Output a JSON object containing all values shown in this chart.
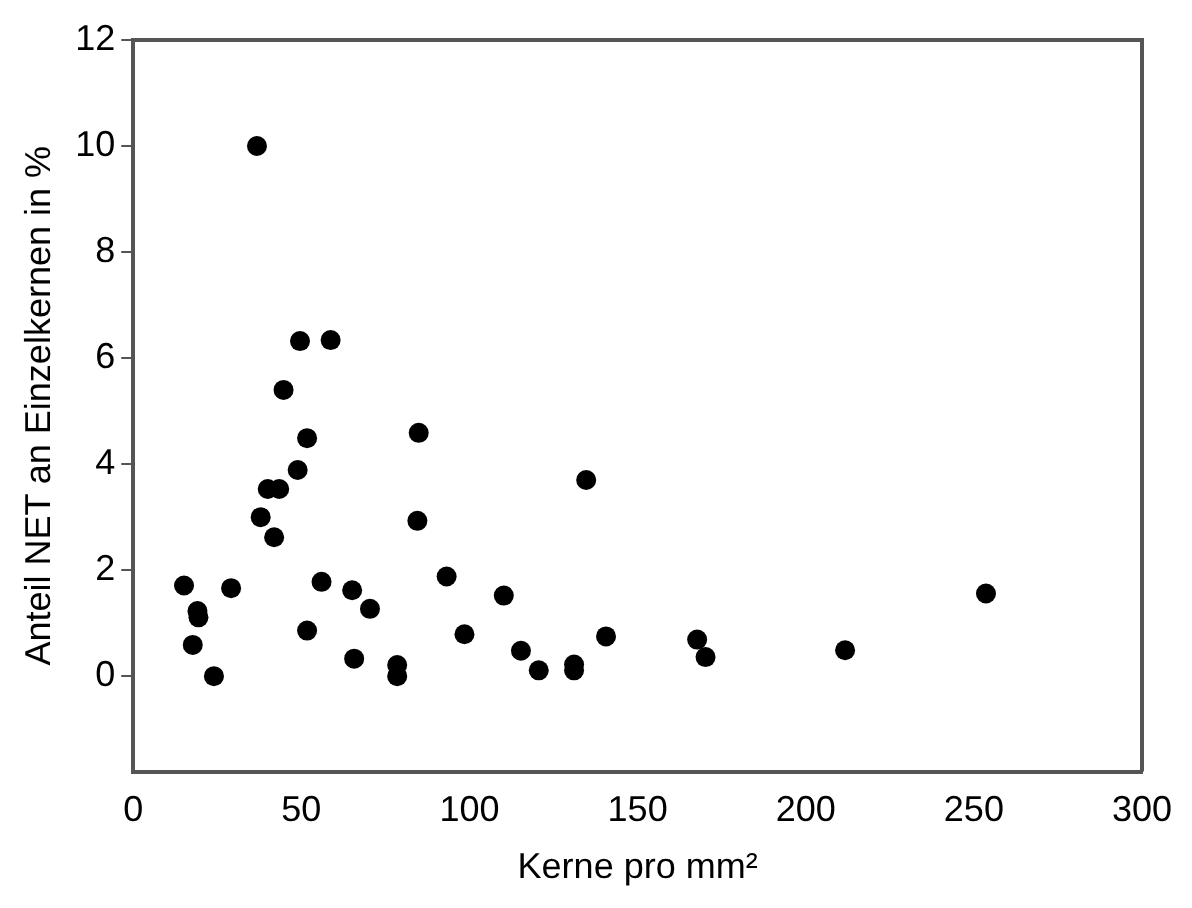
{
  "chart_data": {
    "type": "scatter",
    "xlabel": "Kerne pro mm²",
    "ylabel": "Anteil NET an Einzelkernen in %",
    "x": [
      15.1,
      17.7,
      19.1,
      19.4,
      24.0,
      29.1,
      36.8,
      37.9,
      40.0,
      43.4,
      41.9,
      44.7,
      48.9,
      49.6,
      51.7,
      51.7,
      56.0,
      58.7,
      65.1,
      65.7,
      70.4,
      78.5,
      78.5,
      84.9,
      84.5,
      93.2,
      98.5,
      110.2,
      115.3,
      120.6,
      131.1,
      131.1,
      134.7,
      140.6,
      167.7,
      170.2,
      211.7,
      253.6
    ],
    "values": [
      1.71,
      0.59,
      1.23,
      1.11,
      0.0,
      1.66,
      10.0,
      3.0,
      3.53,
      3.53,
      2.62,
      5.4,
      3.89,
      6.32,
      4.49,
      0.86,
      1.78,
      6.34,
      1.62,
      0.33,
      1.27,
      0.21,
      0.0,
      4.59,
      2.93,
      1.88,
      0.79,
      1.52,
      0.48,
      0.11,
      0.22,
      0.11,
      3.7,
      0.75,
      0.69,
      0.36,
      0.49,
      1.56
    ],
    "color": "#000000",
    "marker": "circle",
    "xlim": [
      0,
      300
    ],
    "xticks": [
      0,
      50,
      100,
      150,
      200,
      250,
      300
    ],
    "ylim": [
      -1.8,
      12
    ],
    "yticks": [
      0,
      2,
      4,
      6,
      8,
      10,
      12
    ],
    "grid": false,
    "legend": false
  }
}
